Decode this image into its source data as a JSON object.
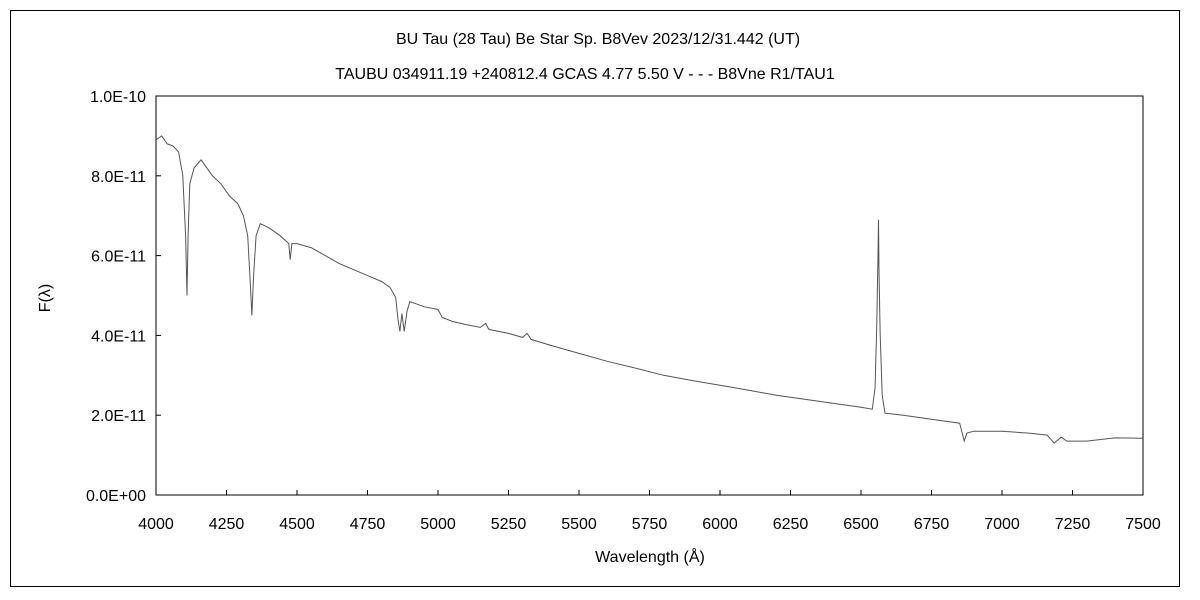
{
  "chart_data": {
    "type": "line",
    "title": "BU Tau (28 Tau)    Be Star    Sp. B8Vev    2023/12/31.442 (UT)",
    "subtitle": "TAUBU 034911.19 +240812.4 GCAS 4.77 5.50 V - - - B8Vne R1/TAU1",
    "xlabel": "Wavelength (Å)",
    "ylabel": "F(λ)",
    "xlim": [
      4000,
      7500
    ],
    "ylim": [
      0,
      1e-10
    ],
    "xticks": [
      "4000",
      "4250",
      "4500",
      "4750",
      "5000",
      "5250",
      "5500",
      "5750",
      "6000",
      "6250",
      "6500",
      "6750",
      "7000",
      "7250",
      "7500"
    ],
    "yticks": [
      "0.0E+00",
      "2.0E-11",
      "4.0E-11",
      "6.0E-11",
      "8.0E-11",
      "1.0E-10"
    ],
    "grid": false,
    "colors": {
      "line": "#555555",
      "axes": "#000000"
    },
    "series": [
      {
        "points": [
          [
            4000,
            8.9e-11
          ],
          [
            4020,
            9e-11
          ],
          [
            4040,
            8.8e-11
          ],
          [
            4060,
            8.75e-11
          ],
          [
            4080,
            8.6e-11
          ],
          [
            4095,
            8e-11
          ],
          [
            4105,
            6.5e-11
          ],
          [
            4110,
            5e-11
          ],
          [
            4114,
            6.5e-11
          ],
          [
            4120,
            7.8e-11
          ],
          [
            4135,
            8.2e-11
          ],
          [
            4160,
            8.4e-11
          ],
          [
            4180,
            8.2e-11
          ],
          [
            4200,
            8e-11
          ],
          [
            4230,
            7.8e-11
          ],
          [
            4260,
            7.5e-11
          ],
          [
            4290,
            7.3e-11
          ],
          [
            4310,
            7e-11
          ],
          [
            4325,
            6.5e-11
          ],
          [
            4333,
            5.5e-11
          ],
          [
            4340,
            4.5e-11
          ],
          [
            4346,
            5.5e-11
          ],
          [
            4355,
            6.5e-11
          ],
          [
            4370,
            6.8e-11
          ],
          [
            4400,
            6.7e-11
          ],
          [
            4440,
            6.5e-11
          ],
          [
            4471,
            6.3e-11
          ],
          [
            4476,
            5.9e-11
          ],
          [
            4482,
            6.3e-11
          ],
          [
            4500,
            6.3e-11
          ],
          [
            4550,
            6.2e-11
          ],
          [
            4600,
            6e-11
          ],
          [
            4650,
            5.8e-11
          ],
          [
            4700,
            5.65e-11
          ],
          [
            4750,
            5.5e-11
          ],
          [
            4800,
            5.35e-11
          ],
          [
            4830,
            5.2e-11
          ],
          [
            4850,
            4.95e-11
          ],
          [
            4858,
            4.4e-11
          ],
          [
            4865,
            4.1e-11
          ],
          [
            4872,
            4.55e-11
          ],
          [
            4880,
            4.1e-11
          ],
          [
            4890,
            4.6e-11
          ],
          [
            4900,
            4.85e-11
          ],
          [
            4950,
            4.72e-11
          ],
          [
            5000,
            4.65e-11
          ],
          [
            5015,
            4.45e-11
          ],
          [
            5050,
            4.35e-11
          ],
          [
            5100,
            4.27e-11
          ],
          [
            5150,
            4.2e-11
          ],
          [
            5169,
            4.3e-11
          ],
          [
            5180,
            4.15e-11
          ],
          [
            5250,
            4.05e-11
          ],
          [
            5300,
            3.95e-11
          ],
          [
            5316,
            4.05e-11
          ],
          [
            5330,
            3.9e-11
          ],
          [
            5400,
            3.75e-11
          ],
          [
            5500,
            3.55e-11
          ],
          [
            5600,
            3.35e-11
          ],
          [
            5700,
            3.18e-11
          ],
          [
            5800,
            3e-11
          ],
          [
            5900,
            2.87e-11
          ],
          [
            6000,
            2.75e-11
          ],
          [
            6100,
            2.63e-11
          ],
          [
            6200,
            2.5e-11
          ],
          [
            6300,
            2.4e-11
          ],
          [
            6400,
            2.3e-11
          ],
          [
            6500,
            2.2e-11
          ],
          [
            6540,
            2.15e-11
          ],
          [
            6550,
            2.7e-11
          ],
          [
            6556,
            4.3e-11
          ],
          [
            6560,
            5.9e-11
          ],
          [
            6562,
            6.9e-11
          ],
          [
            6564,
            5.6e-11
          ],
          [
            6568,
            4e-11
          ],
          [
            6575,
            2.5e-11
          ],
          [
            6585,
            2.05e-11
          ],
          [
            6650,
            2e-11
          ],
          [
            6750,
            1.9e-11
          ],
          [
            6850,
            1.8e-11
          ],
          [
            6866,
            1.35e-11
          ],
          [
            6875,
            1.55e-11
          ],
          [
            6900,
            1.6e-11
          ],
          [
            7000,
            1.6e-11
          ],
          [
            7100,
            1.55e-11
          ],
          [
            7160,
            1.5e-11
          ],
          [
            7185,
            1.3e-11
          ],
          [
            7210,
            1.45e-11
          ],
          [
            7230,
            1.35e-11
          ],
          [
            7300,
            1.35e-11
          ],
          [
            7400,
            1.43e-11
          ],
          [
            7500,
            1.42e-11
          ]
        ]
      }
    ]
  }
}
